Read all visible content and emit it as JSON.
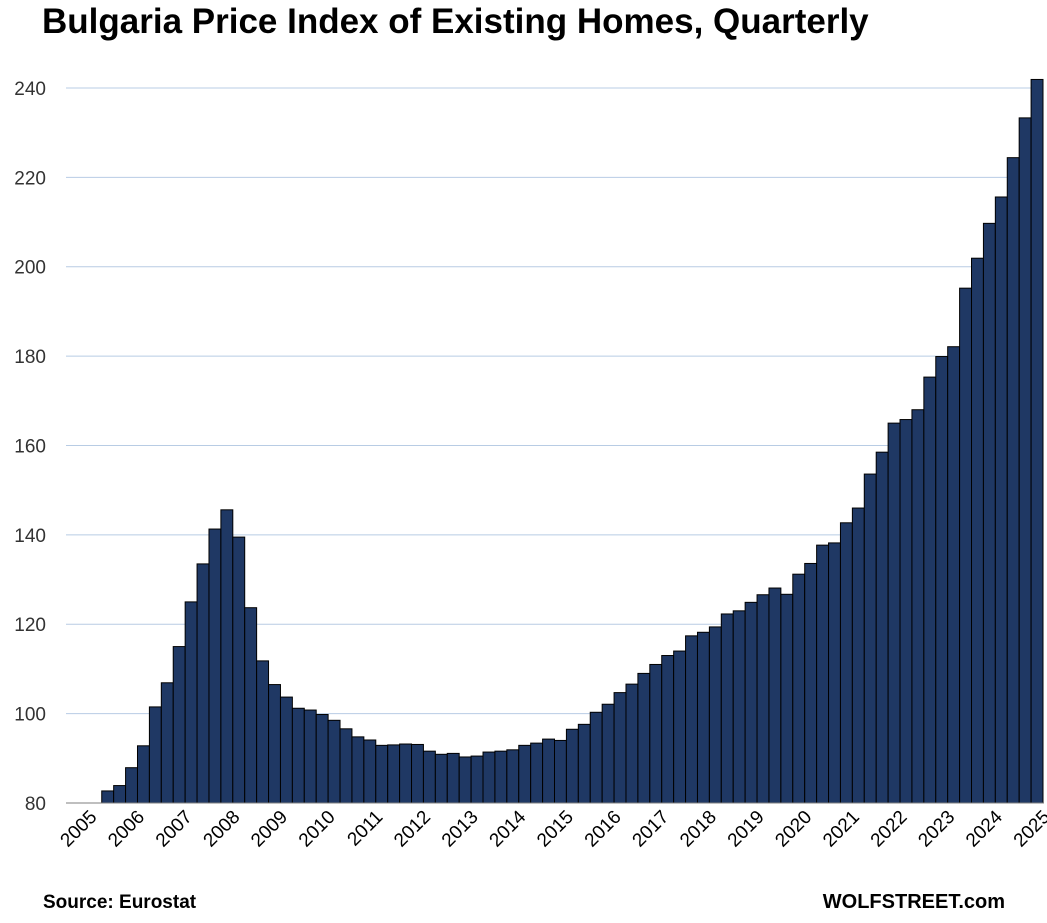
{
  "chart_data": {
    "type": "bar",
    "title": "Bulgaria Price Index of Existing Homes, Quarterly",
    "xlabel": "",
    "ylabel": "",
    "ylim": [
      80,
      242
    ],
    "yticks": [
      80,
      100,
      120,
      140,
      160,
      180,
      200,
      220,
      240
    ],
    "year_labels": [
      "2005",
      "2006",
      "2007",
      "2008",
      "2009",
      "2010",
      "2011",
      "2012",
      "2013",
      "2014",
      "2015",
      "2016",
      "2017",
      "2018",
      "2019",
      "2020",
      "2021",
      "2022",
      "2023",
      "2024",
      "2025"
    ],
    "grid": true,
    "legend": "none",
    "bar_color": "#1f3864",
    "bar_edge_color": "#000000",
    "grid_color": "#b8cce4",
    "categories": [
      "2005-Q1",
      "2005-Q2",
      "2005-Q3",
      "2005-Q4",
      "2006-Q1",
      "2006-Q2",
      "2006-Q3",
      "2006-Q4",
      "2007-Q1",
      "2007-Q2",
      "2007-Q3",
      "2007-Q4",
      "2008-Q1",
      "2008-Q2",
      "2008-Q3",
      "2008-Q4",
      "2009-Q1",
      "2009-Q2",
      "2009-Q3",
      "2009-Q4",
      "2010-Q1",
      "2010-Q2",
      "2010-Q3",
      "2010-Q4",
      "2011-Q1",
      "2011-Q2",
      "2011-Q3",
      "2011-Q4",
      "2012-Q1",
      "2012-Q2",
      "2012-Q3",
      "2012-Q4",
      "2013-Q1",
      "2013-Q2",
      "2013-Q3",
      "2013-Q4",
      "2014-Q1",
      "2014-Q2",
      "2014-Q3",
      "2014-Q4",
      "2015-Q1",
      "2015-Q2",
      "2015-Q3",
      "2015-Q4",
      "2016-Q1",
      "2016-Q2",
      "2016-Q3",
      "2016-Q4",
      "2017-Q1",
      "2017-Q2",
      "2017-Q3",
      "2017-Q4",
      "2018-Q1",
      "2018-Q2",
      "2018-Q3",
      "2018-Q4",
      "2019-Q1",
      "2019-Q2",
      "2019-Q3",
      "2019-Q4",
      "2020-Q1",
      "2020-Q2",
      "2020-Q3",
      "2020-Q4",
      "2021-Q1",
      "2021-Q2",
      "2021-Q3",
      "2021-Q4",
      "2022-Q1",
      "2022-Q2",
      "2022-Q3",
      "2022-Q4",
      "2023-Q1",
      "2023-Q2",
      "2023-Q3",
      "2023-Q4",
      "2024-Q1",
      "2024-Q2",
      "2024-Q3",
      "2024-Q4",
      "2025-Q1",
      "2025-Q2"
    ],
    "values": [
      null,
      null,
      null,
      82.7,
      83.9,
      87.9,
      92.8,
      101.5,
      106.9,
      115.0,
      125.0,
      133.5,
      141.3,
      145.6,
      139.5,
      123.7,
      111.8,
      106.5,
      103.7,
      101.2,
      100.8,
      99.8,
      98.5,
      96.6,
      94.8,
      94.1,
      92.9,
      93.0,
      93.2,
      93.1,
      91.6,
      90.9,
      91.1,
      90.3,
      90.5,
      91.4,
      91.6,
      91.9,
      92.9,
      93.4,
      94.3,
      94.0,
      96.5,
      97.6,
      100.3,
      102.1,
      104.7,
      106.6,
      109.0,
      111.0,
      113.0,
      114.0,
      117.4,
      118.2,
      119.4,
      122.3,
      123.0,
      124.9,
      126.6,
      128.1,
      126.7,
      131.2,
      133.6,
      137.7,
      138.2,
      142.7,
      146.0,
      153.6,
      158.5,
      165.0,
      165.8,
      168.0,
      175.3,
      179.9,
      182.1,
      195.2,
      201.9,
      209.7,
      215.6,
      224.4,
      233.3,
      241.9
    ]
  },
  "footer": {
    "source": "Source: Eurostat",
    "brand": "WOLFSTREET.com"
  }
}
